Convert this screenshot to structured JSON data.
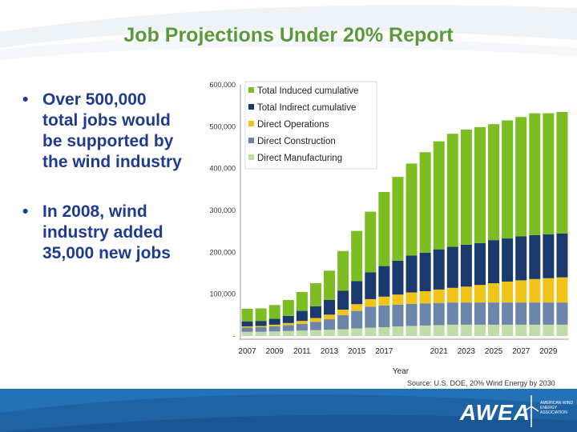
{
  "slide": {
    "title": "Job Projections Under 20% Report",
    "bullets": [
      "Over 500,000 total jobs would be supported by the wind industry",
      "In 2008, wind industry added 35,000 new jobs"
    ],
    "source": "Source: U.S. DOE, 20% Wind Energy by 2030"
  },
  "logo": {
    "text": "AWEA",
    "subtext": "AMERICAN WIND ENERGY ASSOCIATION"
  },
  "colors": {
    "title": "#5b9a3a",
    "bullet": "#1f3b8f",
    "footer": "#1e63a3"
  },
  "chart_data": {
    "type": "bar",
    "stacked": true,
    "xlabel": "Year",
    "ylabel": "",
    "ylim": [
      0,
      600000
    ],
    "yticks": [
      "600,000",
      "500,000",
      "400,000",
      "300,000",
      "200,000",
      "100,000",
      "-"
    ],
    "ytick_values": [
      600000,
      500000,
      400000,
      300000,
      200000,
      100000,
      0
    ],
    "xtick_labels": [
      "2007",
      "2009",
      "2011",
      "2013",
      "2015",
      "2017",
      "2021",
      "2023",
      "2025",
      "2027",
      "2029"
    ],
    "legend_position": "top-left",
    "categories": [
      "2007",
      "2008",
      "2009",
      "2010",
      "2011",
      "2012",
      "2013",
      "2014",
      "2015",
      "2016",
      "2017",
      "2018",
      "2019",
      "2020",
      "2021",
      "2022",
      "2023",
      "2024",
      "2025",
      "2026",
      "2027",
      "2028",
      "2029",
      "2030"
    ],
    "series": [
      {
        "name": "Direct Manufacturing",
        "color": "#c2dca5",
        "values": [
          10000,
          10000,
          11000,
          12000,
          13000,
          14000,
          15000,
          16000,
          18000,
          20000,
          21000,
          23000,
          24000,
          25000,
          26000,
          27000,
          27000,
          27000,
          27000,
          27000,
          27000,
          27000,
          27000,
          27000
        ]
      },
      {
        "name": "Direct Construction",
        "color": "#6b86aa",
        "values": [
          10000,
          11000,
          12000,
          14000,
          16000,
          20000,
          25000,
          34000,
          42000,
          50000,
          52000,
          52000,
          53000,
          53000,
          53000,
          53000,
          53000,
          53000,
          53000,
          53000,
          53000,
          53000,
          53000,
          53000
        ]
      },
      {
        "name": "Direct Operations",
        "color": "#f0c419",
        "values": [
          3000,
          3000,
          4000,
          5000,
          7000,
          9000,
          11000,
          13000,
          16000,
          18000,
          21000,
          24000,
          27000,
          29000,
          32000,
          35000,
          38000,
          42000,
          46000,
          50000,
          53000,
          56000,
          58000,
          60000
        ]
      },
      {
        "name": "Total Indirect cumulative",
        "color": "#1a3a6e",
        "values": [
          12000,
          12000,
          14000,
          17000,
          24000,
          28000,
          35000,
          45000,
          55000,
          64000,
          73000,
          81000,
          88000,
          92000,
          96000,
          98000,
          100000,
          100000,
          103000,
          103000,
          105000,
          105000,
          105000,
          105000
        ]
      },
      {
        "name": "Total Induced cumulative",
        "color": "#7bbd23",
        "values": [
          30000,
          30000,
          33000,
          38000,
          45000,
          55000,
          70000,
          95000,
          120000,
          145000,
          177000,
          200000,
          220000,
          240000,
          258000,
          270000,
          275000,
          277000,
          277000,
          282000,
          285000,
          291000,
          289000,
          290000
        ]
      }
    ]
  }
}
